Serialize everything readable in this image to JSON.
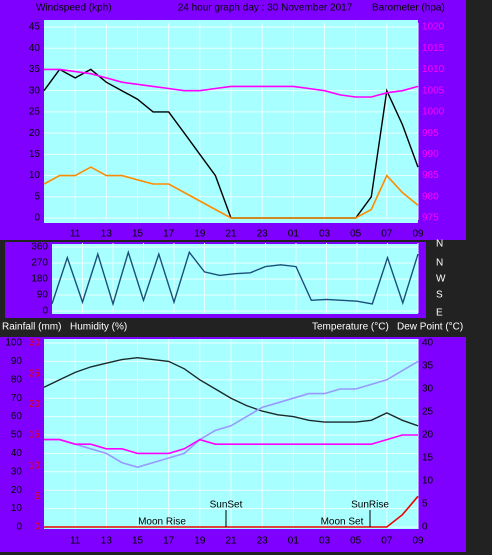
{
  "chart_data": [
    {
      "type": "line",
      "title": "24 hour graph day : 30 November 2017",
      "ylabel": "Windspeed (kph)",
      "y2label": "Barometer (hpa)",
      "categories": [
        null,
        null,
        "11",
        null,
        "13",
        null,
        "15",
        null,
        "17",
        null,
        "19",
        null,
        "21",
        null,
        "23",
        null,
        "01",
        null,
        "03",
        null,
        "05",
        null,
        "07",
        null,
        "09"
      ],
      "ylim": [
        0,
        45
      ],
      "yticks": [
        0,
        5,
        10,
        15,
        20,
        25,
        30,
        35,
        40,
        45
      ],
      "y2lim": [
        975,
        1020
      ],
      "y2ticks": [
        975,
        980,
        985,
        990,
        995,
        1000,
        1005,
        1010,
        1015,
        1020
      ],
      "grid": true,
      "series": [
        {
          "color": "#000000",
          "values": [
            30,
            35,
            33,
            35,
            32,
            30,
            28,
            25,
            25,
            20,
            15,
            10,
            0,
            0,
            0,
            0,
            0,
            0,
            0,
            0,
            0,
            5,
            30,
            22,
            12
          ]
        },
        {
          "color": "#ff8c00",
          "values": [
            8,
            10,
            10,
            12,
            10,
            10,
            9,
            8,
            8,
            6,
            4,
            2,
            0,
            0,
            0,
            0,
            0,
            0,
            0,
            0,
            0,
            2,
            10,
            6,
            3
          ]
        },
        {
          "color": "#ff00ff",
          "axis": "y2",
          "values": [
            1010,
            1010,
            1009.5,
            1009,
            1008,
            1007,
            1006.5,
            1006,
            1005.5,
            1005,
            1005,
            1005.5,
            1006,
            1006,
            1006,
            1006,
            1006,
            1005.5,
            1005,
            1004,
            1003.5,
            1003.5,
            1004.5,
            1005,
            1006
          ]
        }
      ]
    },
    {
      "type": "line",
      "ylim": [
        0,
        360
      ],
      "yticks": [
        0,
        90,
        180,
        270,
        360
      ],
      "direction_labels": [
        "E",
        "S",
        "W",
        "N"
      ],
      "top_label": "N",
      "grid": true,
      "series": [
        {
          "color": "#1a4f7a",
          "values": [
            40,
            300,
            50,
            320,
            40,
            330,
            60,
            320,
            50,
            330,
            220,
            200,
            210,
            215,
            250,
            260,
            250,
            60,
            65,
            60,
            55,
            40,
            300,
            45,
            320
          ]
        }
      ]
    },
    {
      "type": "line",
      "ylabel": "Humidity (%)",
      "y3label": "Rainfall (mm)",
      "y2label": "Temperature (°C)",
      "y2label_b": "Dew Point (°C)",
      "categories": [
        null,
        null,
        "11",
        null,
        "13",
        null,
        "15",
        null,
        "17",
        null,
        "19",
        null,
        "21",
        null,
        "23",
        null,
        "01",
        null,
        "03",
        null,
        "05",
        null,
        "07",
        null,
        "09"
      ],
      "ylim": [
        0,
        100
      ],
      "yticks": [
        0,
        10,
        20,
        30,
        40,
        50,
        60,
        70,
        80,
        90,
        100
      ],
      "y3lim": [
        0,
        30
      ],
      "y3ticks": [
        0,
        5,
        10,
        15,
        20,
        25,
        30
      ],
      "y2lim": [
        0,
        40
      ],
      "y2ticks": [
        0,
        5,
        10,
        15,
        20,
        25,
        30,
        35,
        40
      ],
      "grid": true,
      "annotations": [
        "Moon Rise",
        "SunSet",
        "Moon Set",
        "SunRise"
      ],
      "series": [
        {
          "color": "#1a2a2a",
          "values": [
            76,
            80,
            84,
            87,
            89,
            91,
            92,
            91,
            90,
            86,
            80,
            75,
            70,
            66,
            63,
            61,
            60,
            58,
            57,
            57,
            57,
            58,
            62,
            58,
            55
          ]
        },
        {
          "color": "#9999ff",
          "axis": "y2",
          "values": [
            19,
            19,
            18,
            17,
            16,
            14,
            13,
            14,
            15,
            16,
            19,
            21,
            22,
            24,
            26,
            27,
            28,
            29,
            29,
            30,
            30,
            31,
            32,
            34,
            36
          ]
        },
        {
          "color": "#ff00ff",
          "axis": "y2",
          "values": [
            19,
            19,
            18,
            18,
            17,
            17,
            16,
            16,
            16,
            17,
            19,
            18,
            18,
            18,
            18,
            18,
            18,
            18,
            18,
            18,
            18,
            18,
            19,
            20,
            20
          ]
        },
        {
          "color": "#ee0000",
          "axis": "y3",
          "values": [
            0,
            0,
            0,
            0,
            0,
            0,
            0,
            0,
            0,
            0,
            0,
            0,
            0,
            0,
            0,
            0,
            0,
            0,
            0,
            0,
            0,
            0,
            0,
            2,
            5
          ]
        }
      ]
    }
  ]
}
